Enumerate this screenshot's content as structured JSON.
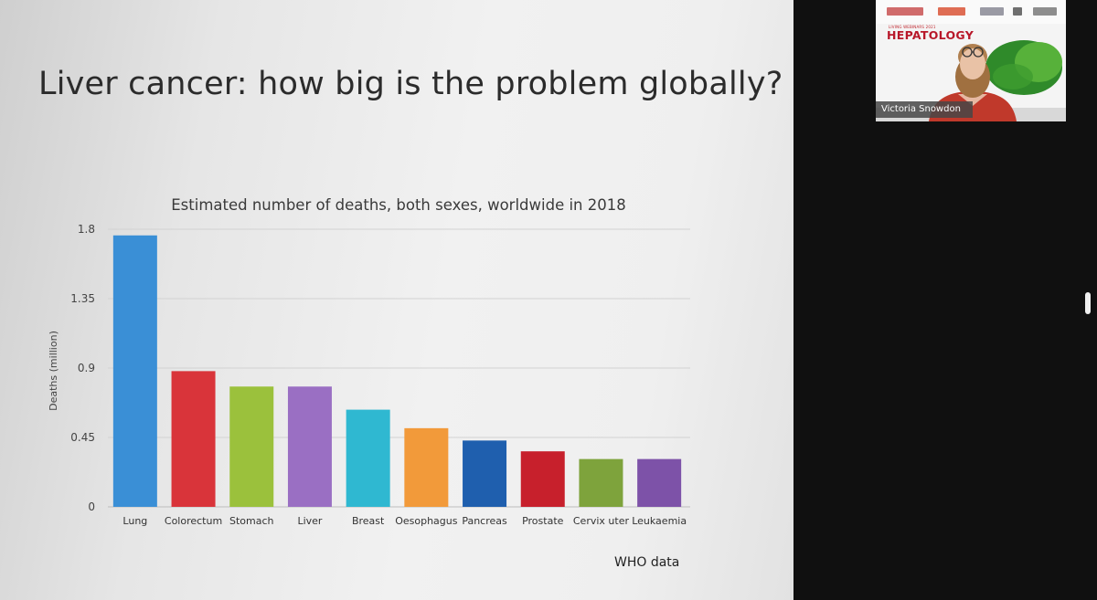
{
  "slide": {
    "title": "Liver cancer: how big is the problem globally?",
    "source": "WHO data"
  },
  "chart_data": {
    "type": "bar",
    "title": "Estimated number of deaths, both sexes, worldwide in 2018",
    "ylabel": "Deaths (million)",
    "xlabel": "",
    "ylim": [
      0,
      1.8
    ],
    "yticks": [
      0,
      0.45,
      0.9,
      1.35,
      1.8
    ],
    "ytick_labels": [
      "0",
      "0.45",
      "0.9",
      "1.35",
      "1.8"
    ],
    "grid": true,
    "categories": [
      "Lung",
      "Colorectum",
      "Stomach",
      "Liver",
      "Breast",
      "Oesophagus",
      "Pancreas",
      "Prostate",
      "Cervix uteri",
      "Leukaemia"
    ],
    "category_labels": [
      "Lung",
      "Colorectum",
      "Stomach",
      "Liver",
      "Breast",
      "Oesophagus",
      "Pancreas",
      "Prostate",
      "Cervix uter",
      "Leukaemia"
    ],
    "values": [
      1.76,
      0.88,
      0.78,
      0.78,
      0.63,
      0.51,
      0.43,
      0.36,
      0.31,
      0.31
    ],
    "colors": [
      "#3a8fd6",
      "#d9343a",
      "#9bc13c",
      "#9a6fc3",
      "#2fb8d1",
      "#f29a3a",
      "#1f5fae",
      "#c7202c",
      "#7ea33c",
      "#7d52a8"
    ]
  },
  "video": {
    "event_line": "LIVING WEBINARS 2021",
    "event_name": "HEPATOLOGY",
    "speaker": "Victoria Snowdon"
  }
}
